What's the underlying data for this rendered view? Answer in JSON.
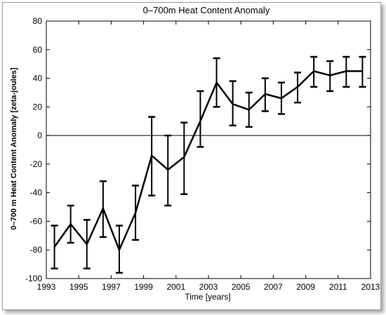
{
  "chart_data": {
    "type": "line",
    "title": "0–700m Heat Content Anomaly",
    "xlabel": "Time [years]",
    "ylabel": "0–700 m Heat Content Anomaly [zeta-joules]",
    "xlim": [
      1993,
      2013
    ],
    "ylim": [
      -100,
      80
    ],
    "x_ticks": [
      1993,
      1995,
      1997,
      1999,
      2001,
      2003,
      2005,
      2007,
      2009,
      2011,
      2013
    ],
    "y_ticks": [
      -100,
      -80,
      -60,
      -40,
      -20,
      0,
      20,
      40,
      60,
      80
    ],
    "grid": false,
    "zero_line": true,
    "series": [
      {
        "x": [
          1993.5,
          1994.5,
          1995.5,
          1996.5,
          1997.5,
          1998.5,
          1999.5,
          2000.5,
          2001.5,
          2002.5,
          2003.5,
          2004.5,
          2005.5,
          2006.5,
          2007.5,
          2008.5,
          2009.5,
          2010.5,
          2011.5,
          2012.5
        ],
        "y": [
          -78,
          -62,
          -76,
          -51,
          -80,
          -54,
          -14,
          -24,
          -15,
          10,
          37,
          22,
          18,
          29,
          26,
          34,
          45,
          42,
          45,
          45
        ],
        "err_low": [
          -93,
          -75,
          -93,
          -71,
          -96,
          -73,
          -42,
          -49,
          -41,
          -8,
          20,
          7,
          6,
          17,
          15,
          23,
          34,
          31,
          34,
          34
        ],
        "err_high": [
          -63,
          -49,
          -59,
          -32,
          -63,
          -35,
          13,
          0,
          9,
          31,
          54,
          38,
          30,
          40,
          37,
          44,
          55,
          52,
          55,
          55
        ]
      }
    ]
  }
}
